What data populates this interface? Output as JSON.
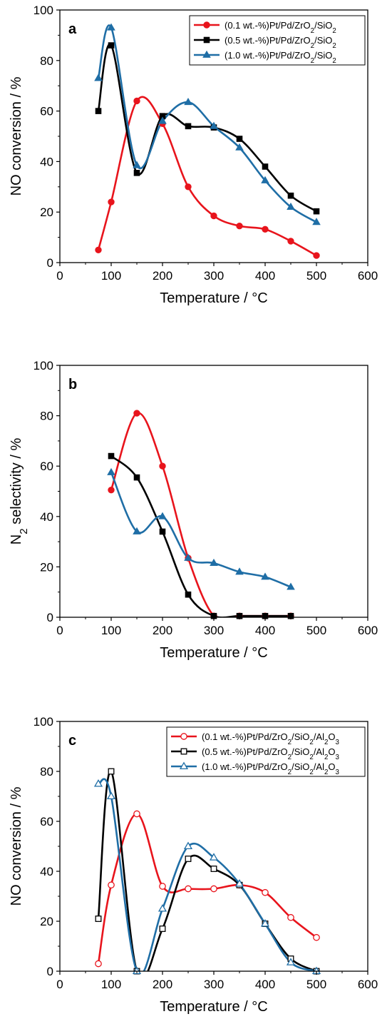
{
  "chart_data": [
    {
      "type": "line",
      "panel_label": "a",
      "xlabel": "Temperature / °C",
      "ylabel": "NO conversion / %",
      "xlim": [
        0,
        600
      ],
      "ylim": [
        0,
        100
      ],
      "xticks": [
        0,
        100,
        200,
        300,
        400,
        500,
        600
      ],
      "yticks": [
        0,
        20,
        40,
        60,
        80,
        100
      ],
      "grid": false,
      "legend_position": "top-right",
      "series": [
        {
          "name": "(0.1 wt.-%)Pt/Pd/ZrO2/SiO2",
          "color": "#e8141c",
          "marker": "circle",
          "filled": true,
          "x": [
            75,
            100,
            150,
            200,
            250,
            300,
            350,
            400,
            450,
            500
          ],
          "y": [
            5,
            24,
            64,
            55,
            30,
            18.5,
            14.5,
            13.2,
            8.5,
            2.8
          ]
        },
        {
          "name": "(0.5 wt.-%)Pt/Pd/ZrO2/SiO2",
          "color": "#000000",
          "marker": "square",
          "filled": true,
          "x": [
            75,
            100,
            150,
            200,
            250,
            300,
            350,
            400,
            450,
            500
          ],
          "y": [
            60,
            86,
            35.5,
            58,
            54,
            53.5,
            49,
            38,
            26.5,
            20.3
          ]
        },
        {
          "name": "(1.0 wt.-%)Pt/Pd/ZrO2/SiO2",
          "color": "#1f6ea6",
          "marker": "triangle",
          "filled": true,
          "x": [
            75,
            100,
            150,
            200,
            250,
            300,
            350,
            400,
            450,
            500
          ],
          "y": [
            73,
            93,
            38.5,
            56,
            63.5,
            54,
            45.5,
            32.5,
            22,
            16
          ]
        }
      ]
    },
    {
      "type": "line",
      "panel_label": "b",
      "xlabel": "Temperature / °C",
      "ylabel": "N2 selectivity / %",
      "xlim": [
        0,
        600
      ],
      "ylim": [
        0,
        100
      ],
      "xticks": [
        0,
        100,
        200,
        300,
        400,
        500,
        600
      ],
      "yticks": [
        0,
        20,
        40,
        60,
        80,
        100
      ],
      "grid": false,
      "series": [
        {
          "color": "#e8141c",
          "marker": "circle",
          "filled": true,
          "x": [
            100,
            150,
            200,
            250,
            300,
            350,
            400,
            450
          ],
          "y": [
            50.5,
            81,
            60,
            23.5,
            0.5,
            0.5,
            0.5,
            0.5
          ]
        },
        {
          "color": "#000000",
          "marker": "square",
          "filled": true,
          "x": [
            100,
            150,
            200,
            250,
            300,
            350,
            400,
            450
          ],
          "y": [
            64,
            55.5,
            34,
            9,
            0.5,
            0.5,
            0.5,
            0.5
          ]
        },
        {
          "color": "#1f6ea6",
          "marker": "triangle",
          "filled": true,
          "x": [
            100,
            150,
            200,
            250,
            300,
            350,
            400,
            450
          ],
          "y": [
            57.5,
            34,
            40,
            23.5,
            21.5,
            18,
            16,
            12
          ]
        }
      ]
    },
    {
      "type": "line",
      "panel_label": "c",
      "xlabel": "Temperature / °C",
      "ylabel": "NO conversion / %",
      "xlim": [
        0,
        600
      ],
      "ylim": [
        0,
        100
      ],
      "xticks": [
        0,
        100,
        200,
        300,
        400,
        500,
        600
      ],
      "yticks": [
        0,
        20,
        40,
        60,
        80,
        100
      ],
      "grid": false,
      "legend_position": "top-right",
      "series": [
        {
          "name": "(0.1 wt.-%)Pt/Pd/ZrO2/SiO2/Al2O3",
          "color": "#e8141c",
          "marker": "circle",
          "filled": false,
          "x": [
            75,
            100,
            150,
            200,
            250,
            300,
            350,
            400,
            450,
            500
          ],
          "y": [
            3,
            34.5,
            63,
            34,
            33,
            33,
            34.5,
            31.5,
            21.5,
            13.5
          ]
        },
        {
          "name": "(0.5 wt.-%)Pt/Pd/ZrO2/SiO2/Al2O3",
          "color": "#000000",
          "marker": "square",
          "filled": false,
          "x": [
            75,
            100,
            150,
            200,
            250,
            300,
            350,
            400,
            450,
            500
          ],
          "y": [
            21,
            80,
            0,
            17,
            45,
            41,
            34.5,
            19,
            5,
            0
          ]
        },
        {
          "name": "(1.0 wt.-%)Pt/Pd/ZrO2/SiO2/Al2O3",
          "color": "#1f6ea6",
          "marker": "triangle",
          "filled": false,
          "x": [
            75,
            100,
            150,
            200,
            250,
            300,
            350,
            400,
            450,
            500
          ],
          "y": [
            75,
            70,
            0,
            25,
            50,
            45.5,
            35,
            19,
            3.5,
            0
          ]
        }
      ]
    }
  ]
}
